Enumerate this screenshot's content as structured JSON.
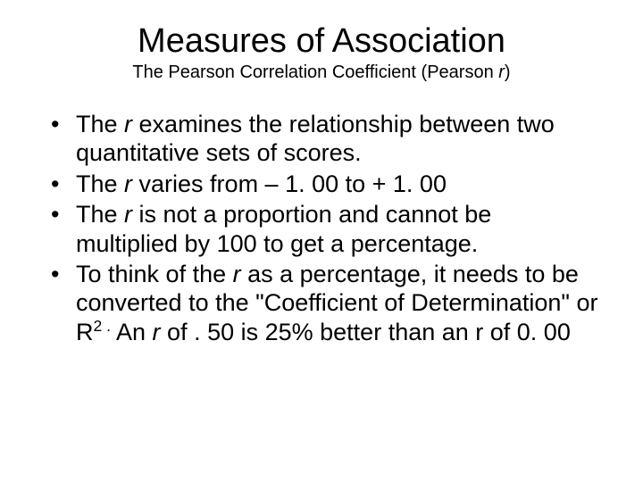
{
  "title": "Measures of Association",
  "subtitle_prefix": "The Pearson Correlation Coefficient (Pearson ",
  "subtitle_italic": "r",
  "subtitle_suffix": ")",
  "bullets": [
    {
      "pre": "The ",
      "it1": "r",
      "mid": " examines the relationship between two quantitative sets of scores.",
      "tail": ""
    },
    {
      "pre": "The ",
      "it1": "r",
      "mid": " varies from – 1. 00 to + 1. 00",
      "tail": ""
    },
    {
      "pre": "The ",
      "it1": "r",
      "mid": " is not a proportion and cannot be multiplied by 100 to get a percentage.",
      "tail": ""
    },
    {
      "pre": "To think of the ",
      "it1": "r",
      "mid": " as a percentage, it needs to be converted to the \"Coefficient of Determination\" or R",
      "sup": "2 .",
      "post": " An ",
      "it2": "r",
      "tail": " of . 50 is 25% better than an r of 0. 00"
    }
  ],
  "styling": {
    "background_color": "#ffffff",
    "text_color": "#000000",
    "title_fontsize": 38,
    "subtitle_fontsize": 20,
    "body_fontsize": 27,
    "font_family": "Arial"
  }
}
